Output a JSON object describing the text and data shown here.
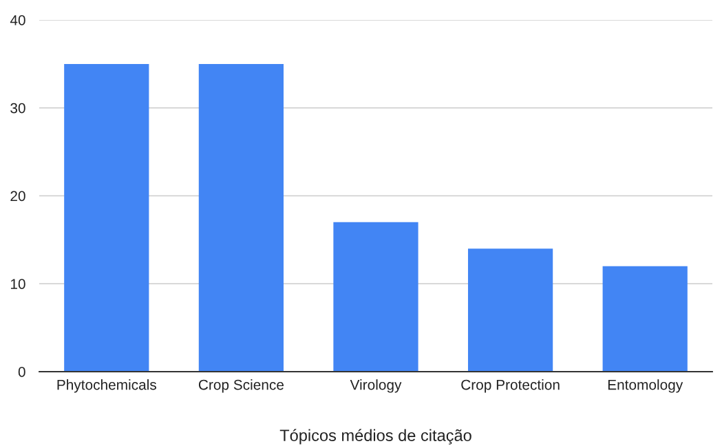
{
  "chart_data": {
    "type": "bar",
    "xlabel": "Tópicos médios de citação",
    "categories": [
      "Phytochemicals",
      "Crop Science",
      "Virology",
      "Crop Protection",
      "Entomology"
    ],
    "values": [
      35,
      35,
      17,
      14,
      12
    ],
    "color": "#4285f4",
    "ylim": [
      0,
      40
    ],
    "yticks": [
      0,
      10,
      20,
      30,
      40
    ],
    "grid": "y",
    "legend": false
  }
}
